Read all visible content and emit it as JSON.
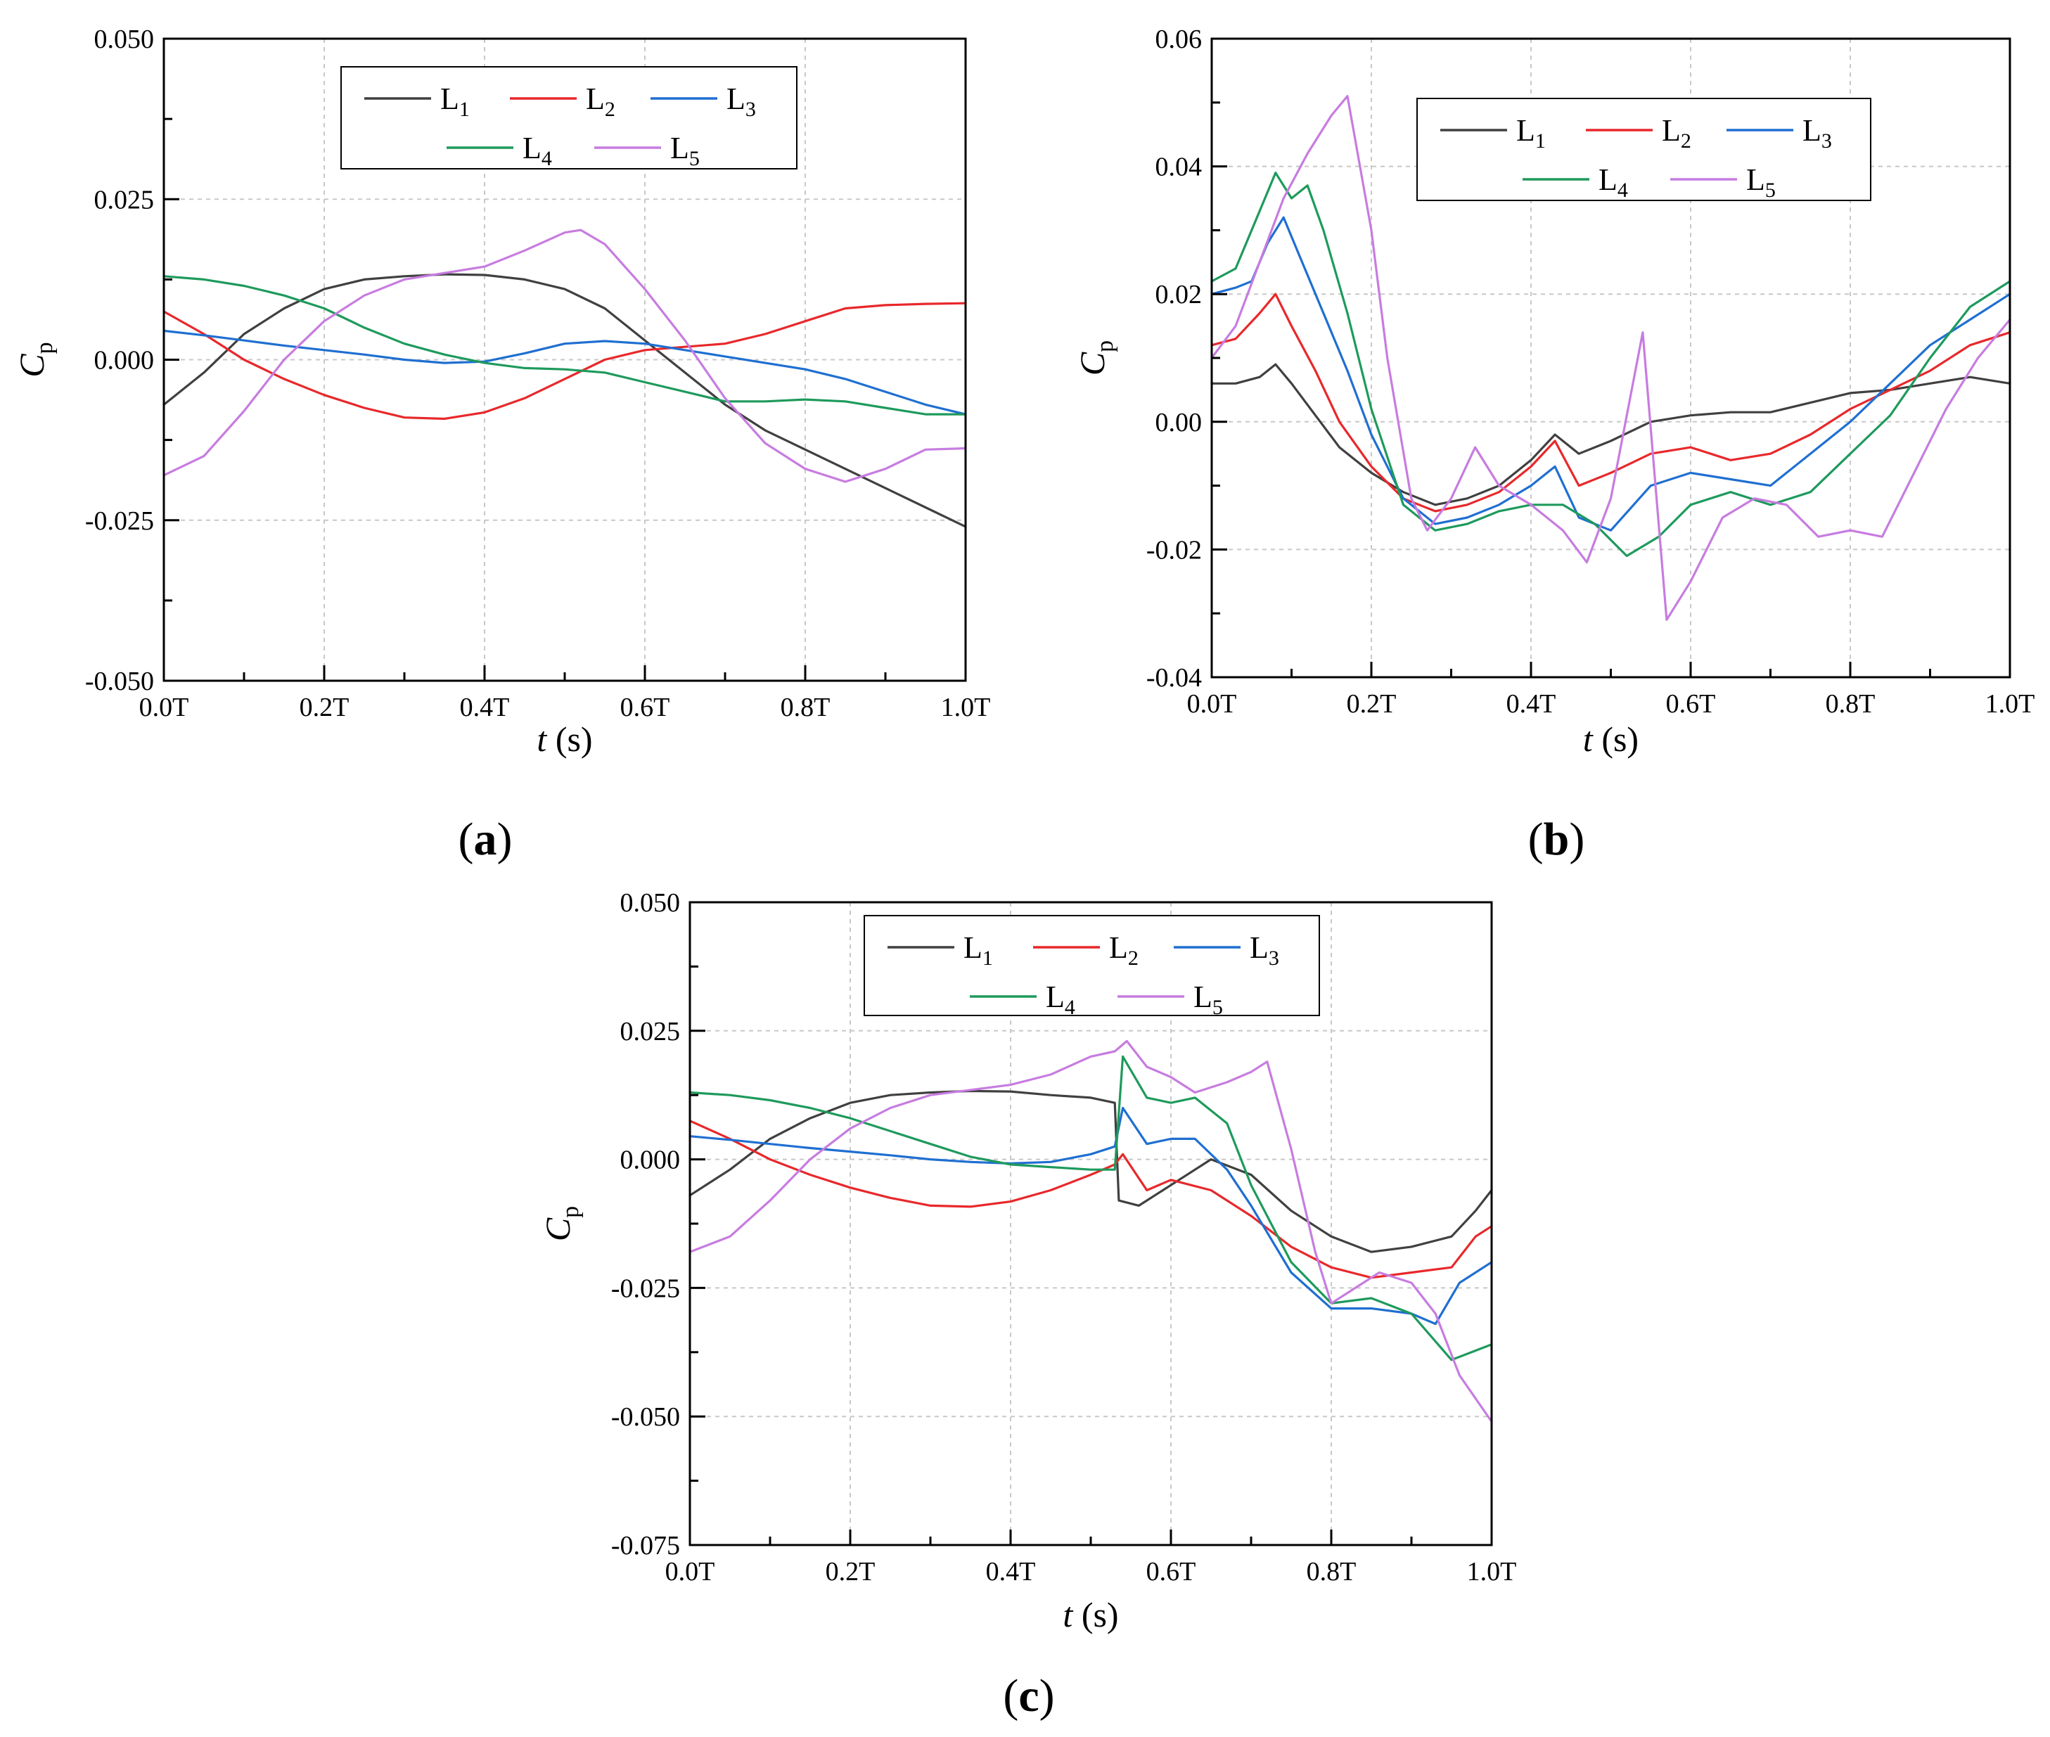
{
  "figure": {
    "panels": [
      {
        "id": "a",
        "label": "(a)"
      },
      {
        "id": "b",
        "label": "(b)"
      },
      {
        "id": "c",
        "label": "(c)"
      }
    ]
  },
  "chart_data": [
    {
      "id": "a",
      "type": "line",
      "panel_label": "(a)",
      "xlabel": "t (s)",
      "ylabel": "Cp",
      "xlim": [
        0,
        1
      ],
      "ylim": [
        -0.05,
        0.05
      ],
      "xticks": [
        0,
        0.2,
        0.4,
        0.6,
        0.8,
        1.0
      ],
      "xtick_labels": [
        "0.0T",
        "0.2T",
        "0.4T",
        "0.6T",
        "0.8T",
        "1.0T"
      ],
      "yticks": [
        -0.05,
        -0.025,
        0.0,
        0.025,
        0.05
      ],
      "ytick_labels": [
        "-0.050",
        "-0.025",
        "0.000",
        "0.025",
        "0.050"
      ],
      "legend_position": "top-center",
      "series": [
        {
          "name": "L1",
          "color": "#404040",
          "x": [
            0,
            0.05,
            0.1,
            0.15,
            0.2,
            0.25,
            0.3,
            0.35,
            0.4,
            0.45,
            0.5,
            0.55,
            0.6,
            0.65,
            0.7,
            0.75,
            0.8,
            0.85,
            0.9,
            0.95,
            1.0
          ],
          "y": [
            -0.007,
            -0.002,
            0.004,
            0.008,
            0.011,
            0.0125,
            0.013,
            0.0133,
            0.0132,
            0.0125,
            0.011,
            0.008,
            0.003,
            -0.002,
            -0.007,
            -0.011,
            -0.014,
            -0.017,
            -0.02,
            -0.023,
            -0.026
          ]
        },
        {
          "name": "L2",
          "color": "#e8282b",
          "x": [
            0,
            0.05,
            0.1,
            0.15,
            0.2,
            0.25,
            0.3,
            0.35,
            0.4,
            0.45,
            0.5,
            0.55,
            0.6,
            0.65,
            0.7,
            0.75,
            0.8,
            0.85,
            0.9,
            0.95,
            1.0
          ],
          "y": [
            0.0075,
            0.004,
            0.0,
            -0.003,
            -0.0055,
            -0.0075,
            -0.009,
            -0.0092,
            -0.0082,
            -0.006,
            -0.003,
            0.0,
            0.0015,
            0.002,
            0.0025,
            0.004,
            0.006,
            0.008,
            0.0085,
            0.0087,
            0.0088
          ]
        },
        {
          "name": "L3",
          "color": "#1f6fd1",
          "x": [
            0,
            0.05,
            0.1,
            0.15,
            0.2,
            0.25,
            0.3,
            0.35,
            0.4,
            0.45,
            0.5,
            0.55,
            0.6,
            0.65,
            0.7,
            0.75,
            0.8,
            0.85,
            0.9,
            0.95,
            1.0
          ],
          "y": [
            0.0045,
            0.0038,
            0.003,
            0.0022,
            0.0015,
            0.0008,
            0.0,
            -0.0005,
            -0.0003,
            0.001,
            0.0025,
            0.0029,
            0.0025,
            0.0015,
            0.0005,
            -0.0005,
            -0.0015,
            -0.003,
            -0.005,
            -0.007,
            -0.0085
          ]
        },
        {
          "name": "L4",
          "color": "#1e9a5c",
          "x": [
            0,
            0.05,
            0.1,
            0.15,
            0.2,
            0.25,
            0.3,
            0.35,
            0.4,
            0.45,
            0.5,
            0.55,
            0.6,
            0.65,
            0.7,
            0.75,
            0.8,
            0.85,
            0.9,
            0.95,
            1.0
          ],
          "y": [
            0.013,
            0.0125,
            0.0115,
            0.01,
            0.008,
            0.005,
            0.0025,
            0.0008,
            -0.0005,
            -0.0013,
            -0.0015,
            -0.002,
            -0.0035,
            -0.005,
            -0.0065,
            -0.0065,
            -0.0062,
            -0.0065,
            -0.0075,
            -0.0085,
            -0.0085
          ]
        },
        {
          "name": "L5",
          "color": "#c77ce0",
          "x": [
            0,
            0.05,
            0.1,
            0.15,
            0.2,
            0.25,
            0.3,
            0.35,
            0.4,
            0.45,
            0.5,
            0.52,
            0.55,
            0.6,
            0.65,
            0.7,
            0.75,
            0.8,
            0.85,
            0.9,
            0.95,
            1.0
          ],
          "y": [
            -0.018,
            -0.015,
            -0.008,
            0.0,
            0.006,
            0.01,
            0.0125,
            0.0135,
            0.0145,
            0.017,
            0.0198,
            0.0202,
            0.018,
            0.011,
            0.003,
            -0.006,
            -0.013,
            -0.017,
            -0.019,
            -0.017,
            -0.014,
            -0.0138
          ]
        }
      ]
    },
    {
      "id": "b",
      "type": "line",
      "panel_label": "(b)",
      "xlabel": "t (s)",
      "ylabel": "Cp",
      "xlim": [
        0,
        1
      ],
      "ylim": [
        -0.04,
        0.06
      ],
      "xticks": [
        0,
        0.2,
        0.4,
        0.6,
        0.8,
        1.0
      ],
      "xtick_labels": [
        "0.0T",
        "0.2T",
        "0.4T",
        "0.6T",
        "0.8T",
        "1.0T"
      ],
      "yticks": [
        -0.04,
        -0.02,
        0.0,
        0.02,
        0.04,
        0.06
      ],
      "ytick_labels": [
        "-0.04",
        "-0.02",
        "0.00",
        "0.02",
        "0.04",
        "0.06"
      ],
      "legend_position": "top-center",
      "series": [
        {
          "name": "L1",
          "color": "#404040",
          "x": [
            0,
            0.03,
            0.06,
            0.08,
            0.1,
            0.13,
            0.16,
            0.2,
            0.24,
            0.28,
            0.32,
            0.36,
            0.4,
            0.43,
            0.46,
            0.5,
            0.55,
            0.6,
            0.65,
            0.7,
            0.75,
            0.8,
            0.85,
            0.9,
            0.95,
            1.0
          ],
          "y": [
            0.006,
            0.006,
            0.007,
            0.009,
            0.006,
            0.001,
            -0.004,
            -0.008,
            -0.011,
            -0.013,
            -0.012,
            -0.01,
            -0.006,
            -0.002,
            -0.005,
            -0.003,
            0.0,
            0.001,
            0.0015,
            0.0015,
            0.003,
            0.0045,
            0.005,
            0.006,
            0.007,
            0.006
          ]
        },
        {
          "name": "L2",
          "color": "#e8282b",
          "x": [
            0,
            0.03,
            0.06,
            0.08,
            0.1,
            0.13,
            0.16,
            0.2,
            0.24,
            0.28,
            0.32,
            0.36,
            0.4,
            0.43,
            0.46,
            0.5,
            0.55,
            0.6,
            0.65,
            0.7,
            0.75,
            0.8,
            0.85,
            0.9,
            0.95,
            1.0
          ],
          "y": [
            0.012,
            0.013,
            0.017,
            0.02,
            0.015,
            0.008,
            0.0,
            -0.007,
            -0.012,
            -0.014,
            -0.013,
            -0.011,
            -0.007,
            -0.003,
            -0.01,
            -0.008,
            -0.005,
            -0.004,
            -0.006,
            -0.005,
            -0.002,
            0.002,
            0.005,
            0.008,
            0.012,
            0.014
          ]
        },
        {
          "name": "L3",
          "color": "#1f6fd1",
          "x": [
            0,
            0.03,
            0.05,
            0.07,
            0.09,
            0.11,
            0.14,
            0.17,
            0.2,
            0.24,
            0.28,
            0.32,
            0.36,
            0.4,
            0.43,
            0.46,
            0.5,
            0.55,
            0.6,
            0.65,
            0.7,
            0.75,
            0.8,
            0.85,
            0.9,
            0.95,
            1.0
          ],
          "y": [
            0.02,
            0.021,
            0.022,
            0.028,
            0.032,
            0.026,
            0.017,
            0.008,
            -0.002,
            -0.012,
            -0.016,
            -0.015,
            -0.013,
            -0.01,
            -0.007,
            -0.015,
            -0.017,
            -0.01,
            -0.008,
            -0.009,
            -0.01,
            -0.005,
            0.0,
            0.006,
            0.012,
            0.016,
            0.02
          ]
        },
        {
          "name": "L4",
          "color": "#1e9a5c",
          "x": [
            0,
            0.03,
            0.06,
            0.08,
            0.1,
            0.12,
            0.14,
            0.17,
            0.2,
            0.24,
            0.28,
            0.32,
            0.36,
            0.4,
            0.44,
            0.48,
            0.52,
            0.56,
            0.6,
            0.65,
            0.7,
            0.75,
            0.8,
            0.85,
            0.9,
            0.95,
            1.0
          ],
          "y": [
            0.022,
            0.024,
            0.033,
            0.039,
            0.035,
            0.037,
            0.03,
            0.017,
            0.002,
            -0.013,
            -0.017,
            -0.016,
            -0.014,
            -0.013,
            -0.013,
            -0.016,
            -0.021,
            -0.018,
            -0.013,
            -0.011,
            -0.013,
            -0.011,
            -0.005,
            0.001,
            0.01,
            0.018,
            0.022
          ]
        },
        {
          "name": "L5",
          "color": "#c77ce0",
          "x": [
            0,
            0.03,
            0.06,
            0.09,
            0.12,
            0.15,
            0.17,
            0.2,
            0.22,
            0.25,
            0.27,
            0.3,
            0.33,
            0.36,
            0.4,
            0.44,
            0.47,
            0.5,
            0.54,
            0.57,
            0.6,
            0.64,
            0.68,
            0.72,
            0.76,
            0.8,
            0.84,
            0.88,
            0.92,
            0.96,
            1.0
          ],
          "y": [
            0.01,
            0.015,
            0.025,
            0.035,
            0.042,
            0.048,
            0.051,
            0.03,
            0.01,
            -0.012,
            -0.017,
            -0.012,
            -0.004,
            -0.01,
            -0.013,
            -0.017,
            -0.022,
            -0.012,
            0.014,
            -0.031,
            -0.025,
            -0.015,
            -0.012,
            -0.013,
            -0.018,
            -0.017,
            -0.018,
            -0.008,
            0.002,
            0.01,
            0.016
          ]
        }
      ]
    },
    {
      "id": "c",
      "type": "line",
      "panel_label": "(c)",
      "xlabel": "t (s)",
      "ylabel": "Cp",
      "xlim": [
        0,
        1
      ],
      "ylim": [
        -0.075,
        0.05
      ],
      "xticks": [
        0,
        0.2,
        0.4,
        0.6,
        0.8,
        1.0
      ],
      "xtick_labels": [
        "0.0T",
        "0.2T",
        "0.4T",
        "0.6T",
        "0.8T",
        "1.0T"
      ],
      "yticks": [
        -0.075,
        -0.05,
        -0.025,
        0.0,
        0.025,
        0.05
      ],
      "ytick_labels": [
        "-0.075",
        "-0.050",
        "-0.025",
        "0.000",
        "0.025",
        "0.050"
      ],
      "legend_position": "top-center",
      "series": [
        {
          "name": "L1",
          "color": "#404040",
          "x": [
            0,
            0.05,
            0.1,
            0.15,
            0.2,
            0.25,
            0.3,
            0.35,
            0.4,
            0.45,
            0.5,
            0.53,
            0.535,
            0.56,
            0.6,
            0.65,
            0.7,
            0.75,
            0.8,
            0.85,
            0.9,
            0.95,
            0.98,
            1.0
          ],
          "y": [
            -0.007,
            -0.002,
            0.004,
            0.008,
            0.011,
            0.0125,
            0.013,
            0.0133,
            0.0132,
            0.0125,
            0.012,
            0.011,
            -0.008,
            -0.009,
            -0.005,
            0.0,
            -0.003,
            -0.01,
            -0.015,
            -0.018,
            -0.017,
            -0.015,
            -0.01,
            -0.006
          ]
        },
        {
          "name": "L2",
          "color": "#e8282b",
          "x": [
            0,
            0.05,
            0.1,
            0.15,
            0.2,
            0.25,
            0.3,
            0.35,
            0.4,
            0.45,
            0.5,
            0.53,
            0.54,
            0.57,
            0.6,
            0.65,
            0.7,
            0.75,
            0.8,
            0.85,
            0.9,
            0.95,
            0.98,
            1.0
          ],
          "y": [
            0.0075,
            0.004,
            0.0,
            -0.003,
            -0.0055,
            -0.0075,
            -0.009,
            -0.0092,
            -0.0082,
            -0.006,
            -0.003,
            -0.001,
            0.001,
            -0.006,
            -0.004,
            -0.006,
            -0.011,
            -0.017,
            -0.021,
            -0.023,
            -0.022,
            -0.021,
            -0.015,
            -0.013
          ]
        },
        {
          "name": "L3",
          "color": "#1f6fd1",
          "x": [
            0,
            0.05,
            0.1,
            0.15,
            0.2,
            0.25,
            0.3,
            0.35,
            0.4,
            0.45,
            0.5,
            0.53,
            0.54,
            0.57,
            0.6,
            0.63,
            0.67,
            0.7,
            0.75,
            0.8,
            0.85,
            0.9,
            0.93,
            0.96,
            1.0
          ],
          "y": [
            0.0045,
            0.0038,
            0.003,
            0.0022,
            0.0015,
            0.0008,
            0.0,
            -0.0005,
            -0.0008,
            -0.0005,
            0.001,
            0.0025,
            0.01,
            0.003,
            0.004,
            0.004,
            -0.002,
            -0.009,
            -0.022,
            -0.029,
            -0.029,
            -0.03,
            -0.032,
            -0.024,
            -0.02
          ]
        },
        {
          "name": "L4",
          "color": "#1e9a5c",
          "x": [
            0,
            0.05,
            0.1,
            0.15,
            0.2,
            0.25,
            0.3,
            0.35,
            0.4,
            0.45,
            0.5,
            0.53,
            0.54,
            0.57,
            0.6,
            0.63,
            0.67,
            0.7,
            0.75,
            0.8,
            0.85,
            0.9,
            0.95,
            1.0
          ],
          "y": [
            0.013,
            0.0125,
            0.0115,
            0.01,
            0.008,
            0.0055,
            0.003,
            0.0005,
            -0.001,
            -0.0015,
            -0.002,
            -0.002,
            0.02,
            0.012,
            0.011,
            0.012,
            0.007,
            -0.005,
            -0.02,
            -0.028,
            -0.027,
            -0.03,
            -0.039,
            -0.036
          ]
        },
        {
          "name": "L5",
          "color": "#c77ce0",
          "x": [
            0,
            0.05,
            0.1,
            0.15,
            0.2,
            0.25,
            0.3,
            0.35,
            0.4,
            0.45,
            0.5,
            0.53,
            0.545,
            0.57,
            0.6,
            0.63,
            0.67,
            0.7,
            0.72,
            0.75,
            0.78,
            0.8,
            0.83,
            0.86,
            0.9,
            0.93,
            0.96,
            1.0
          ],
          "y": [
            -0.018,
            -0.015,
            -0.008,
            0.0,
            0.006,
            0.01,
            0.0125,
            0.0135,
            0.0145,
            0.0165,
            0.02,
            0.021,
            0.023,
            0.018,
            0.016,
            0.013,
            0.015,
            0.017,
            0.019,
            0.002,
            -0.018,
            -0.028,
            -0.025,
            -0.022,
            -0.024,
            -0.03,
            -0.042,
            -0.051
          ]
        }
      ]
    }
  ]
}
